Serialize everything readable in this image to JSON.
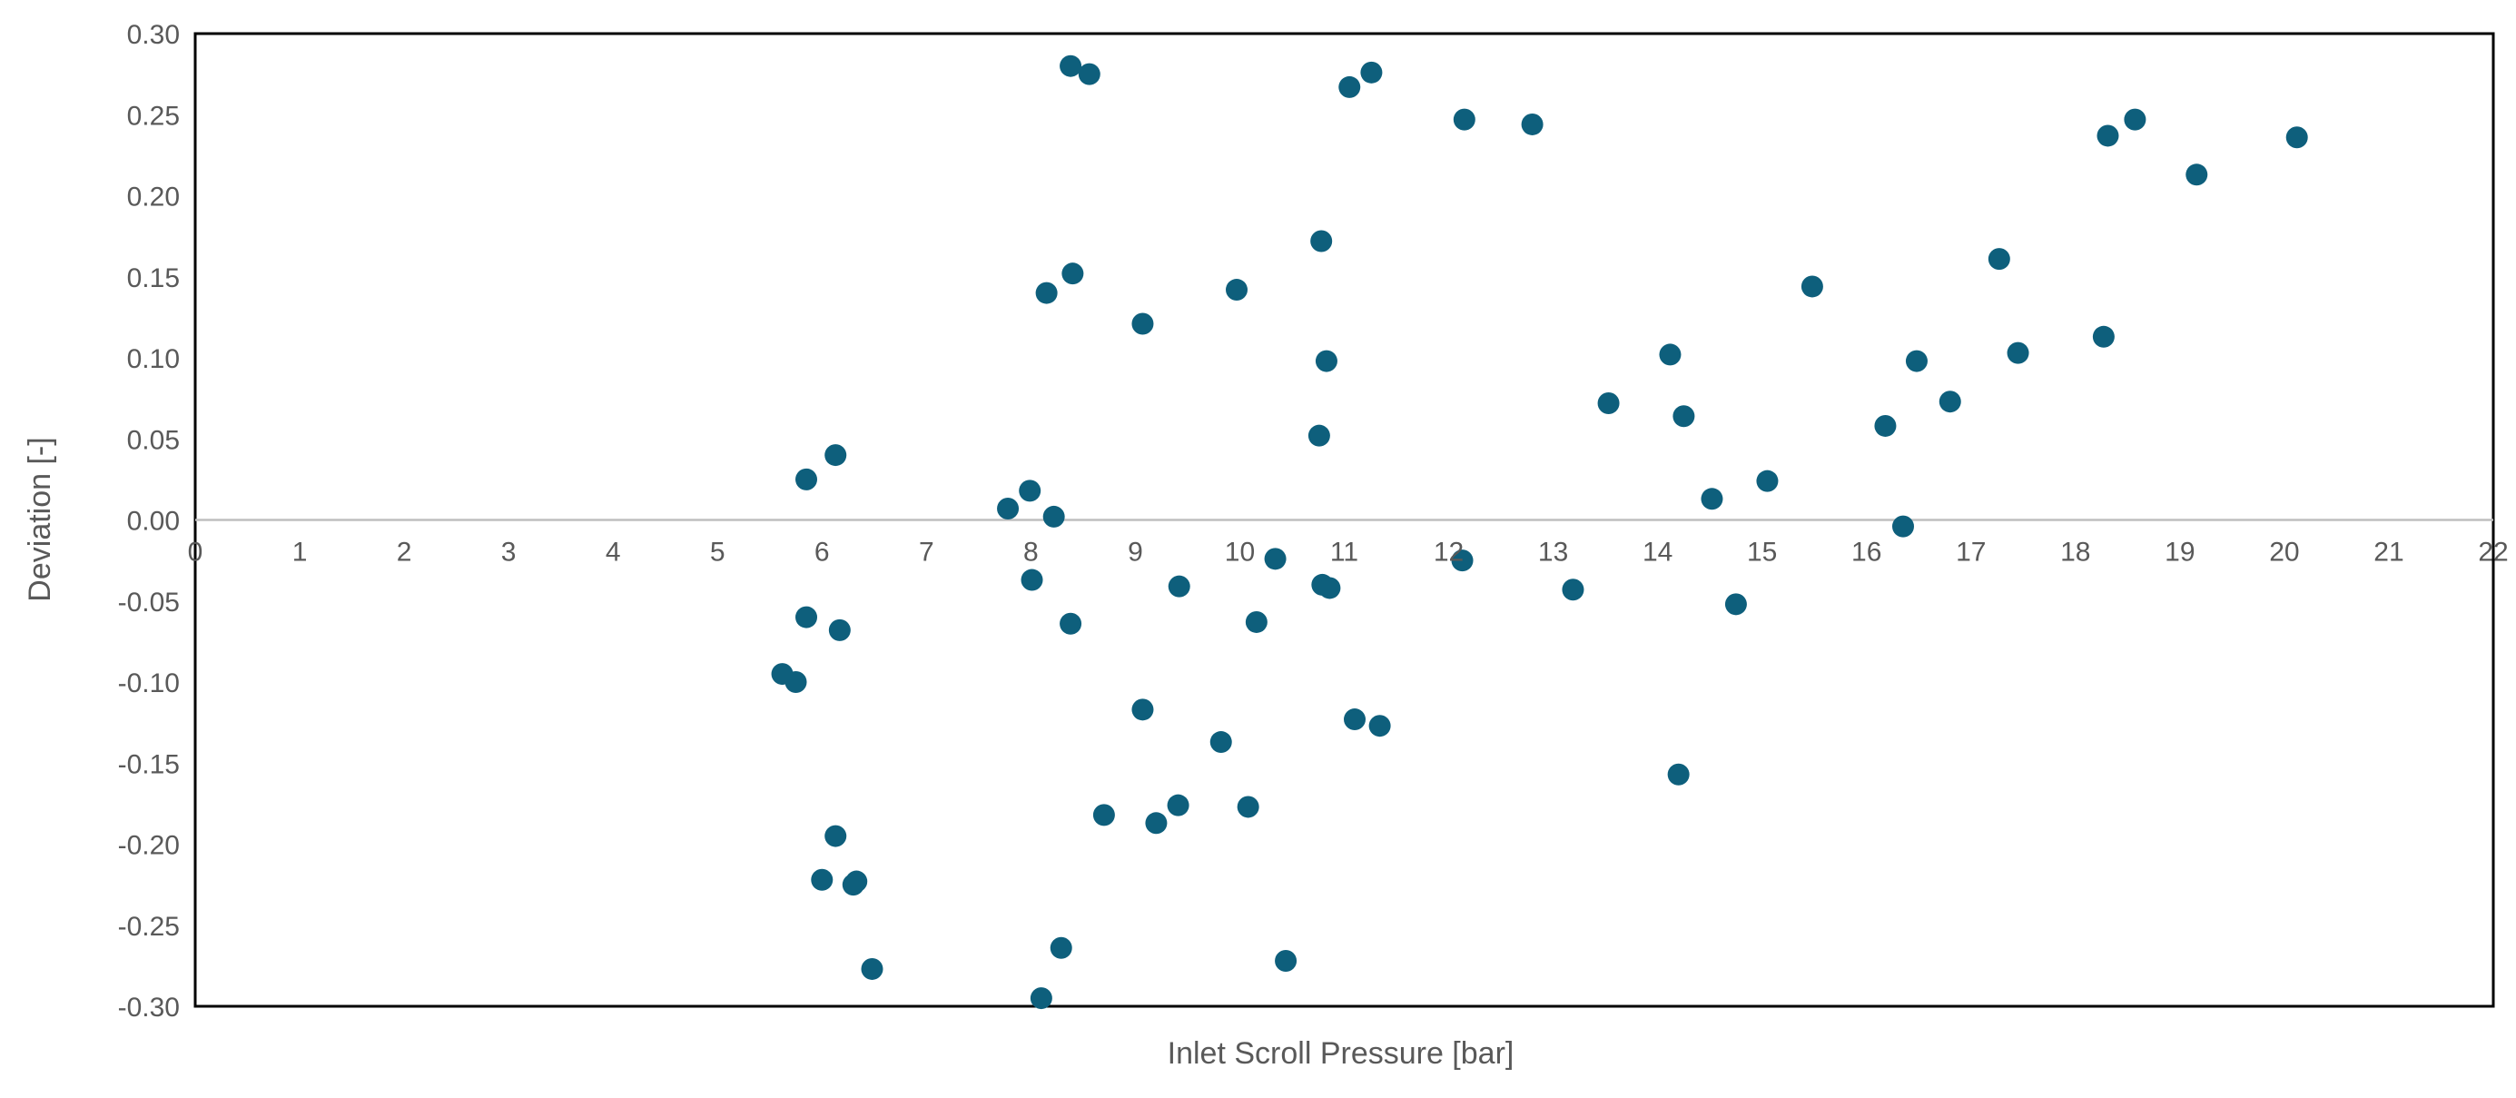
{
  "chart_data": {
    "type": "scatter",
    "title": "",
    "xlabel": "Inlet Scroll Pressure [bar]",
    "ylabel": "Deviation [-]",
    "xlim": [
      0,
      22
    ],
    "ylim": [
      -0.3,
      0.3
    ],
    "x_ticks": [
      "0",
      "1",
      "2",
      "3",
      "4",
      "5",
      "6",
      "7",
      "8",
      "9",
      "10",
      "11",
      "12",
      "13",
      "14",
      "15",
      "16",
      "17",
      "18",
      "19",
      "20",
      "21",
      "22"
    ],
    "y_ticks": [
      "0.30",
      "0.25",
      "0.20",
      "0.15",
      "0.10",
      "0.05",
      "0.00",
      "-0.05",
      "-0.10",
      "-0.15",
      "-0.20",
      "-0.25",
      "-0.30"
    ],
    "y_tick_values": [
      0.3,
      0.25,
      0.2,
      0.15,
      0.1,
      0.05,
      0.0,
      -0.05,
      -0.1,
      -0.15,
      -0.2,
      -0.25,
      -0.3
    ],
    "grid": false,
    "legend": "none",
    "marker_color": "#0e5f7c",
    "zero_line_color": "#bfbfbf",
    "points": [
      {
        "x": 5.62,
        "y": -0.095
      },
      {
        "x": 5.75,
        "y": -0.1
      },
      {
        "x": 5.85,
        "y": -0.06
      },
      {
        "x": 5.85,
        "y": 0.025
      },
      {
        "x": 6.0,
        "y": -0.222
      },
      {
        "x": 6.13,
        "y": 0.04
      },
      {
        "x": 6.13,
        "y": -0.195
      },
      {
        "x": 6.17,
        "y": -0.068
      },
      {
        "x": 6.3,
        "y": -0.225
      },
      {
        "x": 6.33,
        "y": -0.223
      },
      {
        "x": 6.48,
        "y": -0.277
      },
      {
        "x": 7.78,
        "y": 0.007
      },
      {
        "x": 7.99,
        "y": 0.018
      },
      {
        "x": 8.01,
        "y": -0.037
      },
      {
        "x": 8.1,
        "y": -0.295
      },
      {
        "x": 8.15,
        "y": 0.14
      },
      {
        "x": 8.22,
        "y": 0.002
      },
      {
        "x": 8.29,
        "y": -0.264
      },
      {
        "x": 8.38,
        "y": 0.28
      },
      {
        "x": 8.38,
        "y": -0.064
      },
      {
        "x": 8.4,
        "y": 0.152
      },
      {
        "x": 8.56,
        "y": 0.275
      },
      {
        "x": 8.7,
        "y": -0.182
      },
      {
        "x": 9.07,
        "y": 0.121
      },
      {
        "x": 9.07,
        "y": -0.117
      },
      {
        "x": 9.2,
        "y": -0.187
      },
      {
        "x": 9.41,
        "y": -0.176
      },
      {
        "x": 9.42,
        "y": -0.041
      },
      {
        "x": 9.82,
        "y": -0.137
      },
      {
        "x": 9.97,
        "y": 0.142
      },
      {
        "x": 10.08,
        "y": -0.177
      },
      {
        "x": 10.16,
        "y": -0.063
      },
      {
        "x": 10.34,
        "y": -0.024
      },
      {
        "x": 10.44,
        "y": -0.272
      },
      {
        "x": 10.76,
        "y": 0.052
      },
      {
        "x": 10.78,
        "y": 0.172
      },
      {
        "x": 10.79,
        "y": -0.04
      },
      {
        "x": 10.83,
        "y": 0.098
      },
      {
        "x": 10.86,
        "y": -0.042
      },
      {
        "x": 11.05,
        "y": 0.267
      },
      {
        "x": 11.1,
        "y": -0.123
      },
      {
        "x": 11.26,
        "y": 0.276
      },
      {
        "x": 11.34,
        "y": -0.127
      },
      {
        "x": 12.13,
        "y": -0.025
      },
      {
        "x": 12.15,
        "y": 0.247
      },
      {
        "x": 12.8,
        "y": 0.244
      },
      {
        "x": 13.19,
        "y": -0.043
      },
      {
        "x": 13.53,
        "y": 0.072
      },
      {
        "x": 14.12,
        "y": 0.102
      },
      {
        "x": 14.2,
        "y": -0.157
      },
      {
        "x": 14.25,
        "y": 0.064
      },
      {
        "x": 14.52,
        "y": 0.013
      },
      {
        "x": 14.75,
        "y": -0.052
      },
      {
        "x": 15.05,
        "y": 0.024
      },
      {
        "x": 15.48,
        "y": 0.144
      },
      {
        "x": 16.18,
        "y": 0.058
      },
      {
        "x": 16.35,
        "y": -0.004
      },
      {
        "x": 16.48,
        "y": 0.098
      },
      {
        "x": 16.8,
        "y": 0.073
      },
      {
        "x": 17.27,
        "y": 0.161
      },
      {
        "x": 17.45,
        "y": 0.103
      },
      {
        "x": 18.27,
        "y": 0.113
      },
      {
        "x": 18.31,
        "y": 0.237
      },
      {
        "x": 18.57,
        "y": 0.247
      },
      {
        "x": 19.16,
        "y": 0.213
      },
      {
        "x": 20.12,
        "y": 0.236
      }
    ]
  }
}
